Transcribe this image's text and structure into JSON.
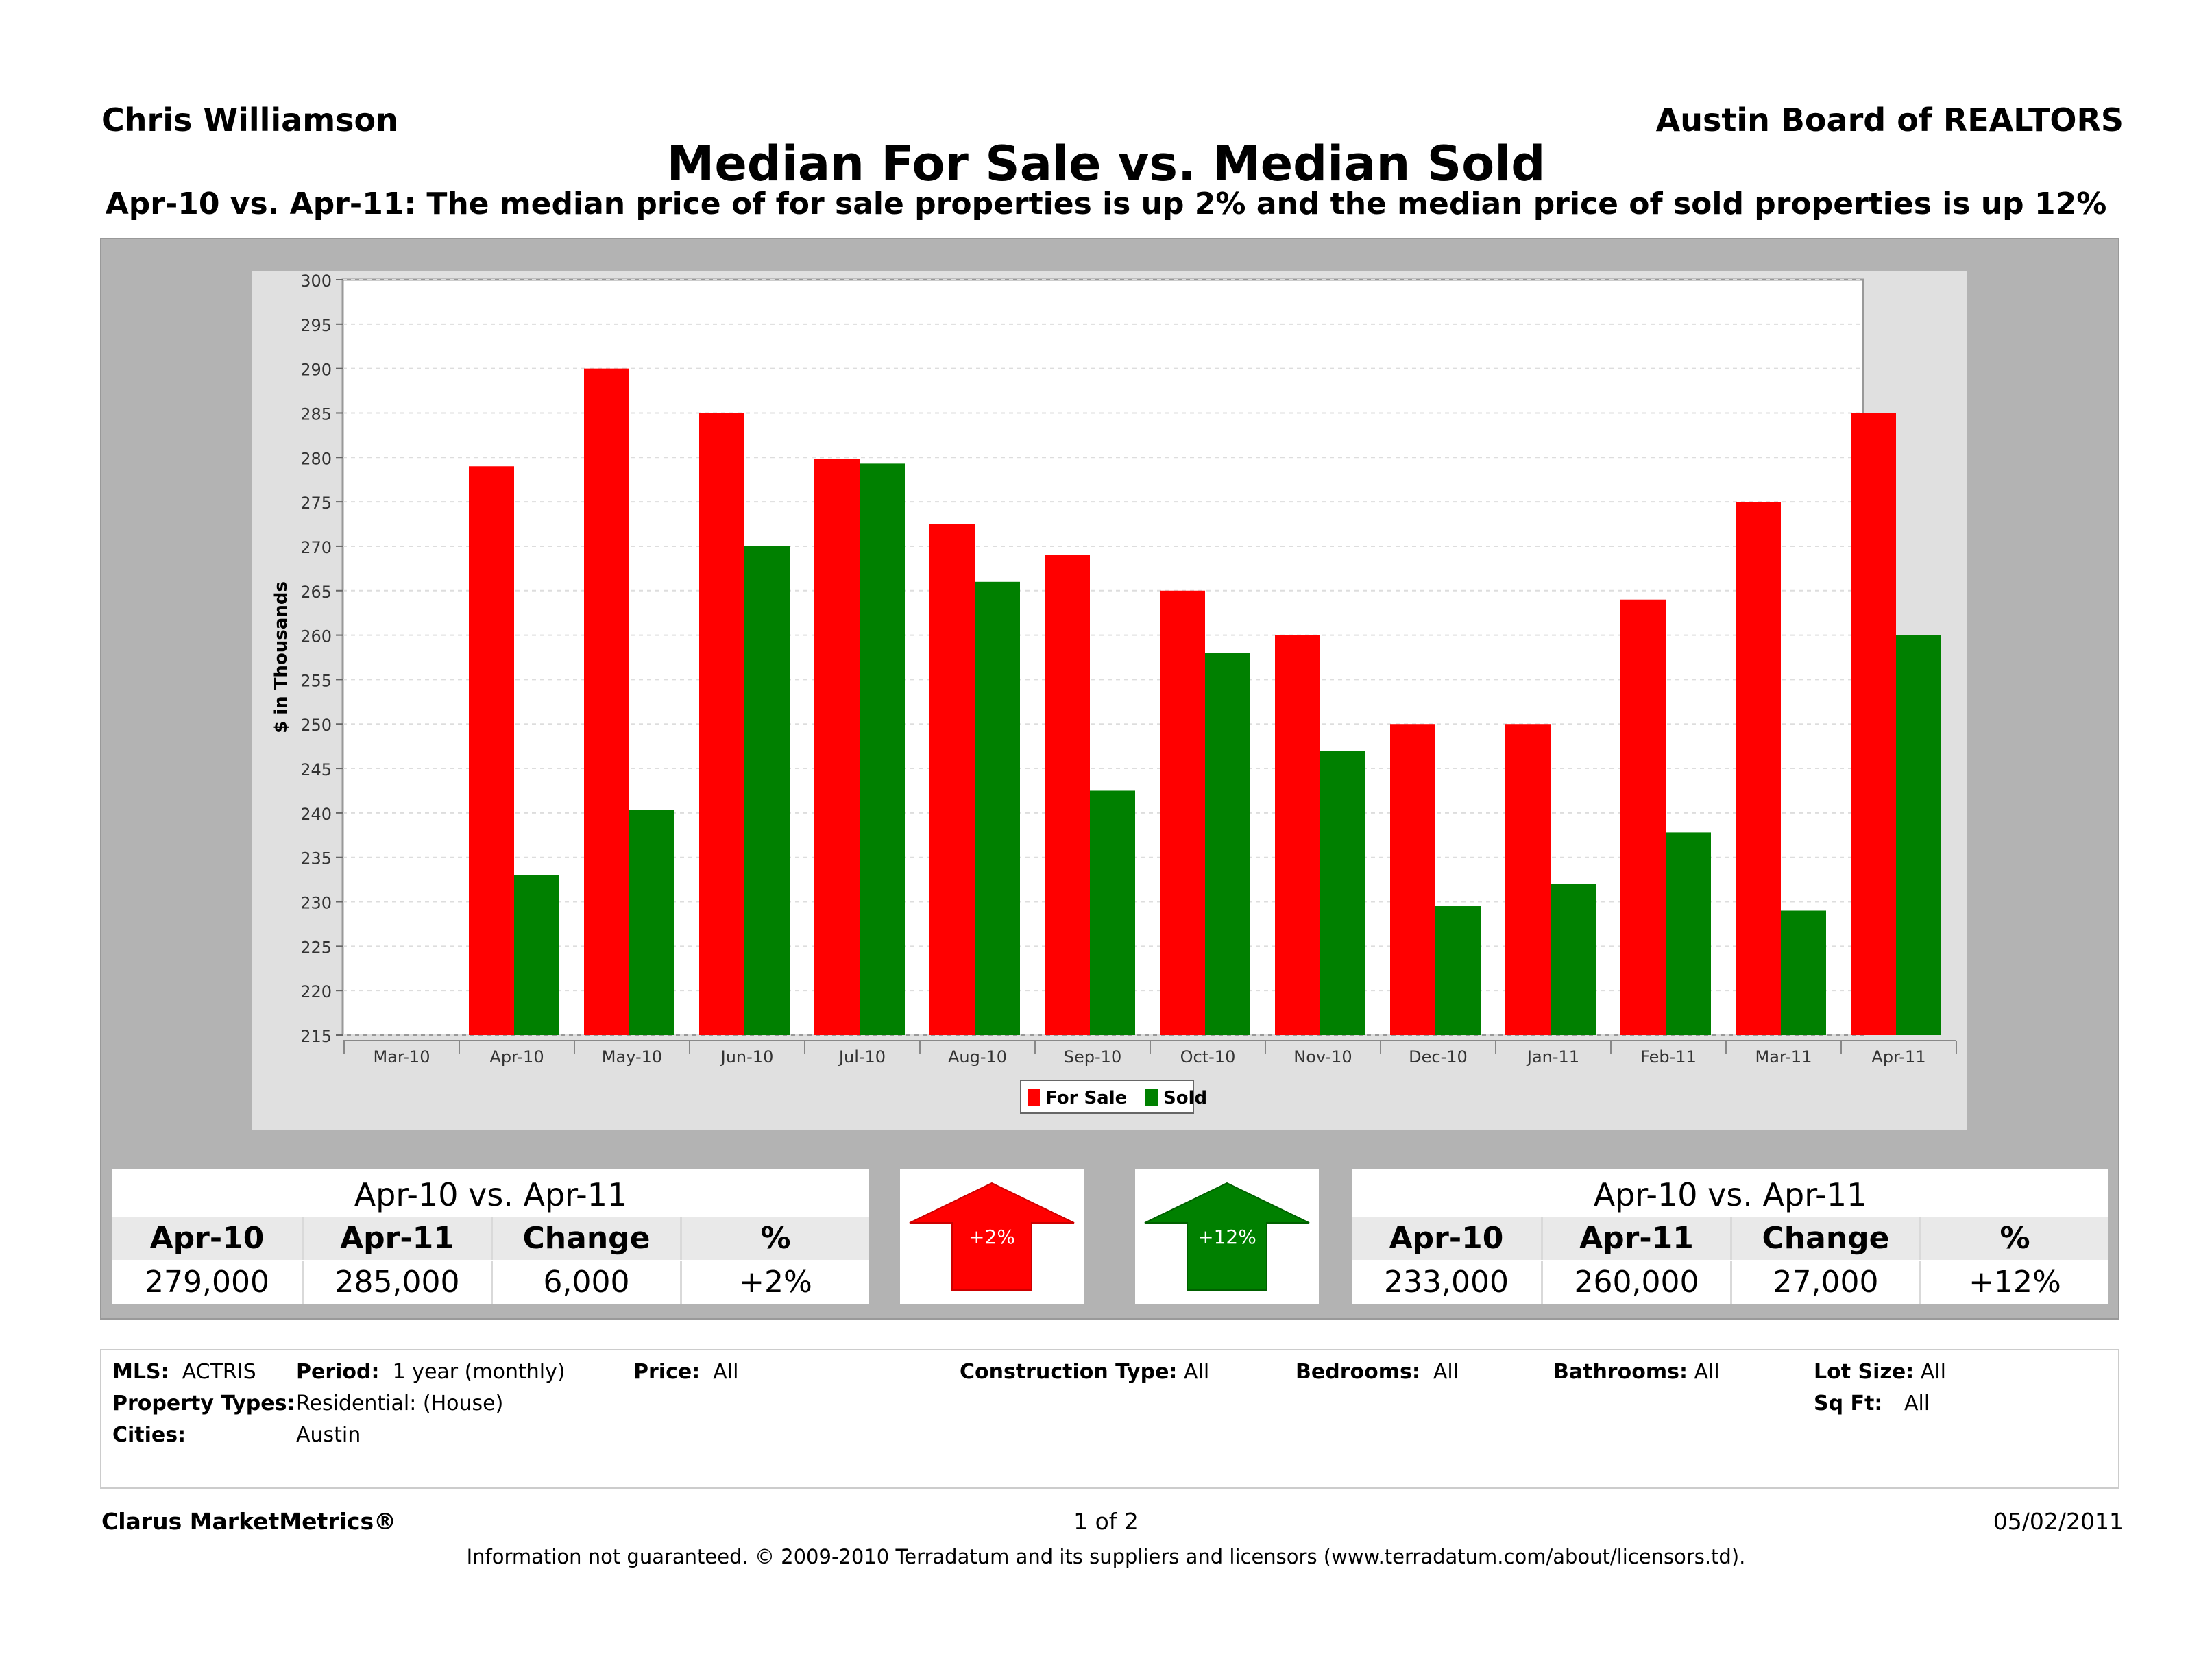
{
  "header": {
    "agent": "Chris Williamson",
    "board": "Austin Board of REALTORS",
    "title": "Median For Sale vs. Median Sold",
    "subtitle": "Apr-10 vs. Apr-11:  The median price of for sale properties is up 2% and the median price of sold properties is up 12%"
  },
  "chart_data": {
    "type": "bar",
    "ylabel": "$ in Thousands",
    "ylim": [
      215,
      300
    ],
    "ytick_step": 5,
    "categories": [
      "Mar-10",
      "Apr-10",
      "May-10",
      "Jun-10",
      "Jul-10",
      "Aug-10",
      "Sep-10",
      "Oct-10",
      "Nov-10",
      "Dec-10",
      "Jan-11",
      "Feb-11",
      "Mar-11",
      "Apr-11"
    ],
    "series": [
      {
        "name": "For Sale",
        "color": "#ff0000",
        "values": [
          null,
          279,
          290,
          285,
          279.8,
          272.5,
          269,
          265,
          260,
          250,
          250,
          264,
          275,
          285
        ]
      },
      {
        "name": "Sold",
        "color": "#008000",
        "values": [
          null,
          233,
          240.3,
          270,
          279.3,
          266,
          242.5,
          258,
          247,
          229.5,
          232,
          237.8,
          229,
          260
        ]
      }
    ],
    "legend": "bottom-center",
    "grid": true
  },
  "stats_left": {
    "title": "Apr-10 vs. Apr-11",
    "headers": [
      "Apr-10",
      "Apr-11",
      "Change",
      "%"
    ],
    "values": [
      "279,000",
      "285,000",
      "6,000",
      "+2%"
    ]
  },
  "stats_right": {
    "title": "Apr-10 vs. Apr-11",
    "headers": [
      "Apr-10",
      "Apr-11",
      "Change",
      "%"
    ],
    "values": [
      "233,000",
      "260,000",
      "27,000",
      "+12%"
    ]
  },
  "arrows": {
    "left": {
      "label": "+2%",
      "color": "#ff0000"
    },
    "right": {
      "label": "+12%",
      "color": "#008000"
    }
  },
  "meta": {
    "mls_label": "MLS:",
    "mls": "ACTRIS",
    "period_label": "Period:",
    "period": "1 year (monthly)",
    "price_label": "Price:",
    "price": "All",
    "construction_label": "Construction Type:",
    "construction": "All",
    "bedrooms_label": "Bedrooms:",
    "bedrooms": "All",
    "bathrooms_label": "Bathrooms:",
    "bathrooms": "All",
    "lotsize_label": "Lot Size:",
    "lotsize": "All",
    "proptypes_label": "Property Types:",
    "proptypes": "Residential: (House)",
    "sqft_label": "Sq Ft:",
    "sqft": "All",
    "cities_label": "Cities:",
    "cities": "Austin"
  },
  "footer": {
    "brand": "Clarus MarketMetrics®",
    "page": "1 of 2",
    "date": "05/02/2011",
    "disclaimer": "Information not guaranteed.  © 2009-2010 Terradatum and its suppliers and licensors (www.terradatum.com/about/licensors.td)."
  }
}
